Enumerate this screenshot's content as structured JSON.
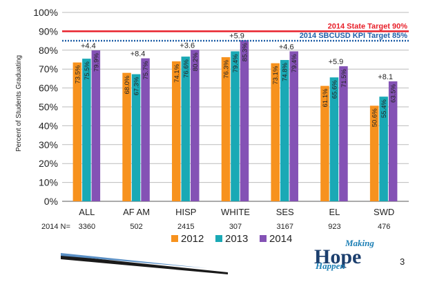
{
  "chart_data": {
    "type": "bar",
    "ylabel": "Percent of Students Graduating",
    "ylim": [
      0,
      100
    ],
    "y_ticks": [
      "0%",
      "10%",
      "20%",
      "30%",
      "40%",
      "50%",
      "60%",
      "70%",
      "80%",
      "90%",
      "100%"
    ],
    "categories": [
      "ALL",
      "AF AM",
      "HISP",
      "WHITE",
      "SES",
      "EL",
      "SWD"
    ],
    "n_label": "2014 N=",
    "n_values": [
      "3360",
      "502",
      "2415",
      "307",
      "3167",
      "923",
      "476"
    ],
    "series": [
      {
        "name": "2012",
        "color": "#f7921e",
        "values": [
          73.5,
          68.0,
          74.1,
          76.3,
          73.1,
          61.1,
          50.6
        ],
        "labels": [
          "73.5%",
          "68.0%",
          "74.1%",
          "76.3%",
          "73.1%",
          "61.1%",
          "50.6%"
        ]
      },
      {
        "name": "2013",
        "color": "#1aa9b5",
        "values": [
          75.5,
          67.3,
          76.6,
          79.4,
          74.8,
          65.6,
          55.4
        ],
        "labels": [
          "75.5%",
          "67.3%",
          "76.6%",
          "79.4%",
          "74.8%",
          "65.6%",
          "55.4%"
        ]
      },
      {
        "name": "2014",
        "color": "#8452b5",
        "values": [
          79.9,
          75.7,
          80.2,
          85.3,
          79.4,
          71.5,
          63.5
        ],
        "labels": [
          "79.9%",
          "75.7%",
          "80.2%",
          "85.3%",
          "79.4%",
          "71.5%",
          "63.5%"
        ]
      }
    ],
    "deltas": [
      "+4.4",
      "+8.4",
      "+3.6",
      "+5.9",
      "+4.6",
      "+5.9",
      "+8.1"
    ],
    "reference_lines": [
      {
        "label": "2014 State Target 90%",
        "value": 90,
        "color": "#e8202a",
        "style": "solid"
      },
      {
        "label": "2014 SBCUSD KPI Target 85%",
        "value": 85,
        "color": "#1f5fa8",
        "style": "dotted"
      }
    ],
    "legend": [
      "2012",
      "2013",
      "2014"
    ]
  },
  "branding": {
    "logo_top": "Making",
    "logo_main": "Hope",
    "logo_bottom": "Happen",
    "page_number": "3"
  }
}
